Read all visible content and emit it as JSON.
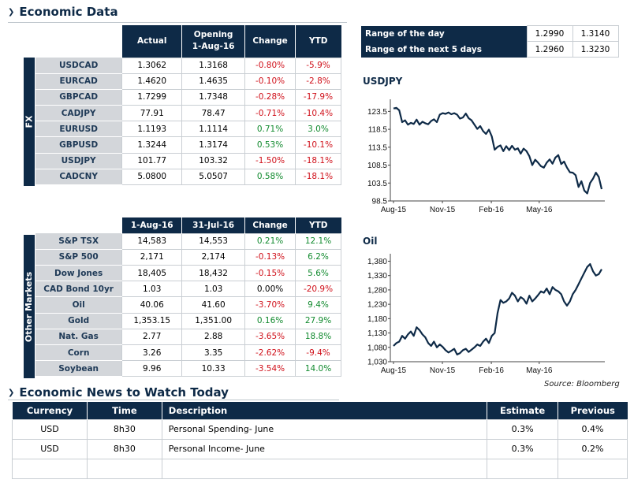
{
  "economic_data": {
    "title": "Economic Data",
    "fx": {
      "side_label": "FX",
      "headers": [
        "Actual",
        "Opening\n1-Aug-16",
        "Change",
        "YTD"
      ],
      "header_line1": [
        "Actual",
        "Opening",
        "Change",
        "YTD"
      ],
      "header_line2": [
        "",
        "1-Aug-16",
        "",
        ""
      ],
      "rows": [
        {
          "label": "USDCAD",
          "actual": "1.3062",
          "opening": "1.3168",
          "change": "-0.80%",
          "ytd": "-5.9%"
        },
        {
          "label": "EURCAD",
          "actual": "1.4620",
          "opening": "1.4635",
          "change": "-0.10%",
          "ytd": "-2.8%"
        },
        {
          "label": "GBPCAD",
          "actual": "1.7299",
          "opening": "1.7348",
          "change": "-0.28%",
          "ytd": "-17.9%"
        },
        {
          "label": "CADJPY",
          "actual": "77.91",
          "opening": "78.47",
          "change": "-0.71%",
          "ytd": "-10.4%"
        },
        {
          "label": "EURUSD",
          "actual": "1.1193",
          "opening": "1.1114",
          "change": "0.71%",
          "ytd": "3.0%"
        },
        {
          "label": "GBPUSD",
          "actual": "1.3244",
          "opening": "1.3174",
          "change": "0.53%",
          "ytd": "-10.1%"
        },
        {
          "label": "USDJPY",
          "actual": "101.77",
          "opening": "103.32",
          "change": "-1.50%",
          "ytd": "-18.1%"
        },
        {
          "label": "CADCNY",
          "actual": "5.0800",
          "opening": "5.0507",
          "change": "0.58%",
          "ytd": "-18.1%"
        }
      ]
    },
    "other_markets": {
      "side_label": "Other Markets",
      "headers": [
        "1-Aug-16",
        "31-Jul-16",
        "Change",
        "YTD"
      ],
      "rows": [
        {
          "label": "S&P TSX",
          "a": "14,583",
          "b": "14,553",
          "change": "0.21%",
          "ytd": "12.1%"
        },
        {
          "label": "S&P 500",
          "a": "2,171",
          "b": "2,174",
          "change": "-0.13%",
          "ytd": "6.2%"
        },
        {
          "label": "Dow Jones",
          "a": "18,405",
          "b": "18,432",
          "change": "-0.15%",
          "ytd": "5.6%"
        },
        {
          "label": "CAD Bond 10yr",
          "a": "1.03",
          "b": "1.03",
          "change": "0.00%",
          "ytd": "-20.9%"
        },
        {
          "label": "Oil",
          "a": "40.06",
          "b": "41.60",
          "change": "-3.70%",
          "ytd": "9.4%"
        },
        {
          "label": "Gold",
          "a": "1,353.15",
          "b": "1,351.00",
          "change": "0.16%",
          "ytd": "27.9%"
        },
        {
          "label": "Nat. Gas",
          "a": "2.77",
          "b": "2.88",
          "change": "-3.65%",
          "ytd": "18.8%"
        },
        {
          "label": "Corn",
          "a": "3.26",
          "b": "3.35",
          "change": "-2.62%",
          "ytd": "-9.4%"
        },
        {
          "label": "Soybean",
          "a": "9.96",
          "b": "10.33",
          "change": "-3.54%",
          "ytd": "14.0%"
        }
      ]
    },
    "range": {
      "rows": [
        {
          "label": "Range of the day",
          "low": "1.2990",
          "high": "1.3140"
        },
        {
          "label": "Range of the next 5 days",
          "low": "1.2960",
          "high": "1.3230"
        }
      ]
    },
    "source": "Source: Bloomberg"
  },
  "colors": {
    "navy": "#0e2a47",
    "negative": "#d0101a",
    "positive": "#118a2e",
    "label_bg": "#d3d6da"
  },
  "chart_data": [
    {
      "type": "line",
      "title": "USDJPY",
      "x_ticks": [
        "Aug-15",
        "Nov-15",
        "Feb-16",
        "May-16"
      ],
      "y_ticks": [
        "123.5",
        "118.5",
        "113.5",
        "108.5",
        "103.5",
        "98.5"
      ],
      "ylim": [
        98.5,
        126
      ],
      "series": [
        {
          "values": [
            124.3,
            124.5,
            123.8,
            120.5,
            121.0,
            119.8,
            120.3,
            120.0,
            121.2,
            119.8,
            120.6,
            120.2,
            119.9,
            120.8,
            121.3,
            120.5,
            122.6,
            123.0,
            122.8,
            123.2,
            122.7,
            123.0,
            122.6,
            121.5,
            121.8,
            122.9,
            121.6,
            121.0,
            119.8,
            118.6,
            119.4,
            118.0,
            117.2,
            118.4,
            116.5,
            112.8,
            113.6,
            114.0,
            112.4,
            113.8,
            112.7,
            113.9,
            112.8,
            113.2,
            111.7,
            113.1,
            112.4,
            111.0,
            108.5,
            110.0,
            109.2,
            108.2,
            107.8,
            109.2,
            110.1,
            108.9,
            110.6,
            111.3,
            108.8,
            109.5,
            107.8,
            106.5,
            106.4,
            105.7,
            102.4,
            104.0,
            101.4,
            100.6,
            103.5,
            104.7,
            106.4,
            105.2,
            101.8
          ]
        }
      ],
      "grid": false,
      "legend": "none"
    },
    {
      "type": "line",
      "title": "Oil",
      "x_ticks": [
        "Aug-15",
        "Nov-15",
        "Feb-16",
        "May-16"
      ],
      "y_ticks": [
        "1,380",
        "1,330",
        "1,280",
        "1,230",
        "1,180",
        "1,130",
        "1,080",
        "1,030"
      ],
      "ylim": [
        1030,
        1395
      ],
      "series": [
        {
          "values": [
            1085,
            1095,
            1100,
            1120,
            1110,
            1125,
            1135,
            1120,
            1150,
            1140,
            1125,
            1115,
            1095,
            1085,
            1100,
            1080,
            1090,
            1082,
            1070,
            1062,
            1068,
            1075,
            1055,
            1060,
            1070,
            1075,
            1064,
            1072,
            1080,
            1090,
            1085,
            1100,
            1110,
            1095,
            1120,
            1130,
            1200,
            1245,
            1235,
            1240,
            1250,
            1270,
            1260,
            1240,
            1255,
            1248,
            1232,
            1260,
            1240,
            1250,
            1262,
            1275,
            1270,
            1285,
            1265,
            1290,
            1280,
            1275,
            1265,
            1240,
            1225,
            1240,
            1265,
            1280,
            1300,
            1320,
            1340,
            1360,
            1370,
            1345,
            1330,
            1335,
            1352
          ]
        }
      ],
      "grid": false,
      "legend": "none"
    }
  ],
  "news": {
    "title": "Economic News to Watch Today",
    "headers": [
      "Currency",
      "Time",
      "Description",
      "Estimate",
      "Previous"
    ],
    "rows": [
      {
        "currency": "USD",
        "time": "8h30",
        "description": "Personal Spending- June",
        "estimate": "0.3%",
        "previous": "0.4%"
      },
      {
        "currency": "USD",
        "time": "8h30",
        "description": "Personal Income- June",
        "estimate": "0.3%",
        "previous": "0.2%"
      },
      {
        "currency": "",
        "time": "",
        "description": "",
        "estimate": "",
        "previous": ""
      }
    ]
  }
}
